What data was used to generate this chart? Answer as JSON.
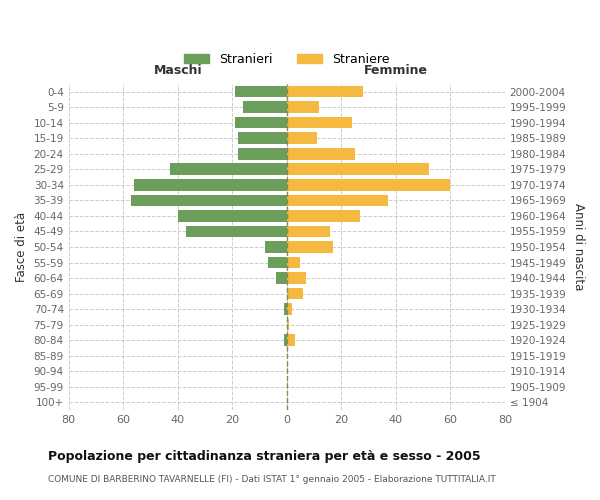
{
  "age_groups": [
    "100+",
    "95-99",
    "90-94",
    "85-89",
    "80-84",
    "75-79",
    "70-74",
    "65-69",
    "60-64",
    "55-59",
    "50-54",
    "45-49",
    "40-44",
    "35-39",
    "30-34",
    "25-29",
    "20-24",
    "15-19",
    "10-14",
    "5-9",
    "0-4"
  ],
  "birth_years": [
    "≤ 1904",
    "1905-1909",
    "1910-1914",
    "1915-1919",
    "1920-1924",
    "1925-1929",
    "1930-1934",
    "1935-1939",
    "1940-1944",
    "1945-1949",
    "1950-1954",
    "1955-1959",
    "1960-1964",
    "1965-1969",
    "1970-1974",
    "1975-1979",
    "1980-1984",
    "1985-1989",
    "1990-1994",
    "1995-1999",
    "2000-2004"
  ],
  "maschi": [
    0,
    0,
    0,
    0,
    1,
    0,
    1,
    0,
    4,
    7,
    8,
    37,
    40,
    57,
    56,
    43,
    18,
    18,
    19,
    16,
    19
  ],
  "femmine": [
    0,
    0,
    0,
    0,
    3,
    1,
    2,
    6,
    7,
    5,
    17,
    16,
    27,
    37,
    60,
    52,
    25,
    11,
    24,
    12,
    28
  ],
  "maschi_color": "#6a9e5a",
  "femmine_color": "#f5b942",
  "background_color": "#ffffff",
  "grid_color": "#cccccc",
  "title": "Popolazione per cittadinanza straniera per età e sesso - 2005",
  "subtitle": "COMUNE DI BARBERINO TAVARNELLE (FI) - Dati ISTAT 1° gennaio 2005 - Elaborazione TUTTITALIA.IT",
  "xlabel_left": "Maschi",
  "xlabel_right": "Femmine",
  "ylabel_left": "Fasce di età",
  "ylabel_right": "Anni di nascita",
  "xlim": 80,
  "legend_stranieri": "Stranieri",
  "legend_straniere": "Straniere",
  "center_line_color": "#888855",
  "tick_label_color": "#666666",
  "axis_label_color": "#333333"
}
